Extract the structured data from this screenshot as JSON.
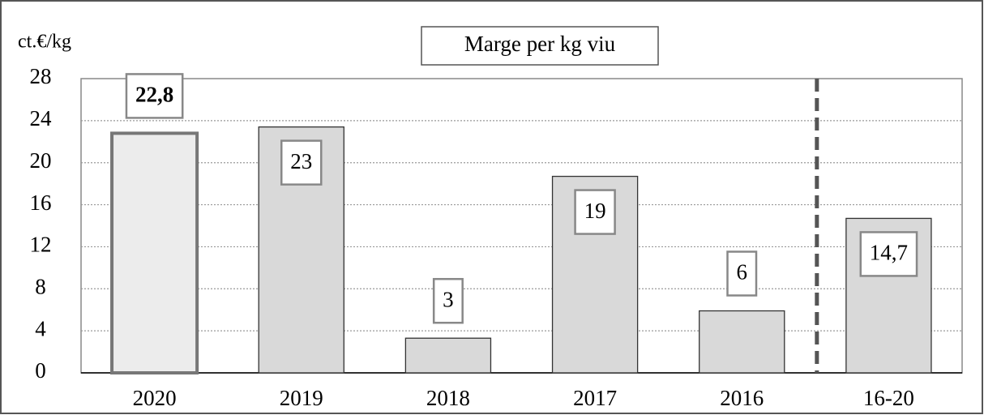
{
  "chart_data": {
    "type": "bar",
    "title": "Marge per kg viu",
    "y_label": "ct.€/kg",
    "categories": [
      "2020",
      "2019",
      "2018",
      "2017",
      "2016",
      "16-20"
    ],
    "values": [
      22.8,
      23.4,
      3.3,
      18.7,
      5.9,
      14.7
    ],
    "value_labels": [
      "22,8",
      "23",
      "3",
      "19",
      "6",
      "14,7"
    ],
    "color": "#d9d9d9",
    "ylim": [
      0,
      28
    ],
    "yticks": [
      0,
      4,
      8,
      12,
      16,
      20,
      24,
      28
    ],
    "grid": true
  }
}
